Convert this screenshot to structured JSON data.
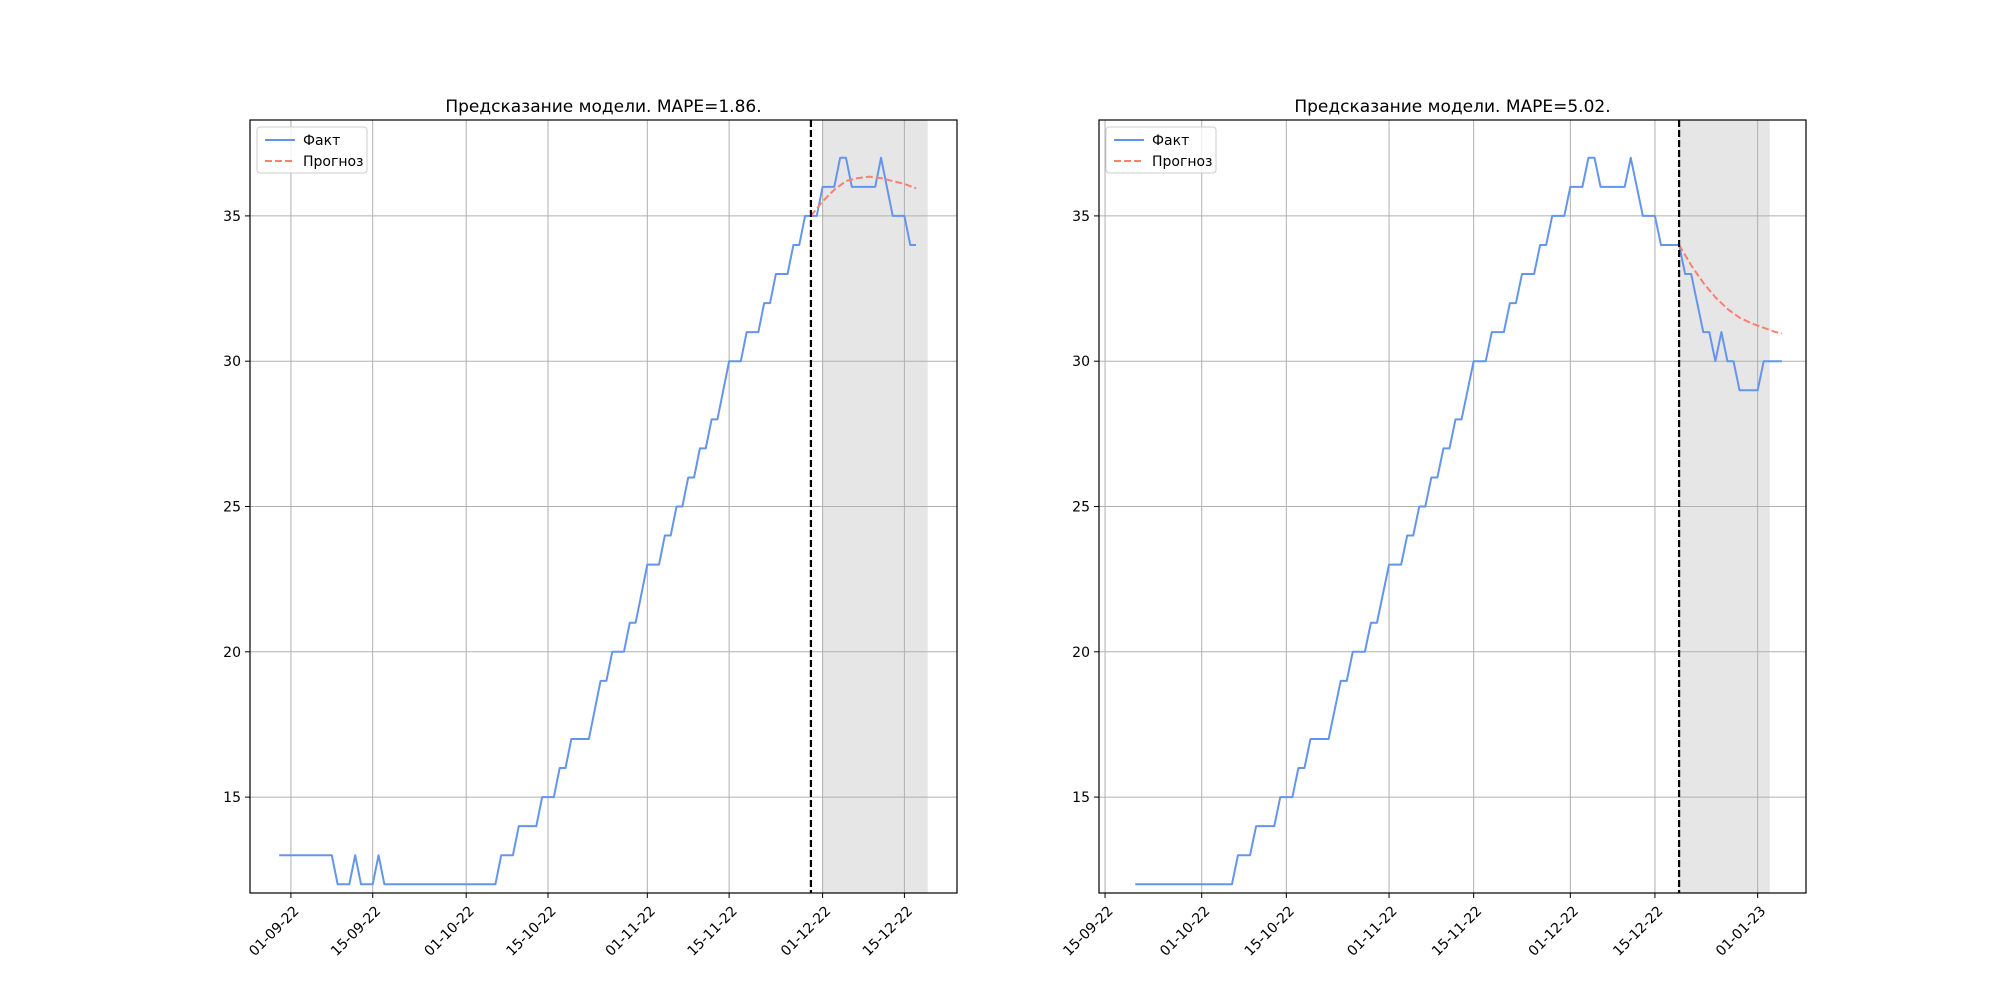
{
  "chart_data": [
    {
      "type": "line",
      "title": "Предсказание модели. MAPE=1.86.",
      "xlabel": "",
      "ylabel": "",
      "x_axis": "date",
      "xlim": [
        "2022-08-25",
        "2022-12-24"
      ],
      "ylim": [
        11.7,
        38.3
      ],
      "yticks": [
        15,
        20,
        25,
        30,
        35
      ],
      "xticks": [
        {
          "date": "2022-09-01",
          "label": "01-09-22"
        },
        {
          "date": "2022-09-15",
          "label": "15-09-22"
        },
        {
          "date": "2022-10-01",
          "label": "01-10-22"
        },
        {
          "date": "2022-10-15",
          "label": "15-10-22"
        },
        {
          "date": "2022-11-01",
          "label": "01-11-22"
        },
        {
          "date": "2022-11-15",
          "label": "15-11-22"
        },
        {
          "date": "2022-12-01",
          "label": "01-12-22"
        },
        {
          "date": "2022-12-15",
          "label": "15-12-22"
        }
      ],
      "grid": true,
      "legend": "top-left",
      "forecast_start": "2022-11-29",
      "shaded_range": [
        "2022-12-01",
        "2022-12-19"
      ],
      "series": [
        {
          "name": "Факт",
          "color": "#6495ED",
          "style": "solid",
          "points": [
            [
              "2022-08-30",
              13
            ],
            [
              "2022-09-08",
              13
            ],
            [
              "2022-09-09",
              12
            ],
            [
              "2022-09-11",
              12
            ],
            [
              "2022-09-12",
              13
            ],
            [
              "2022-09-13",
              12
            ],
            [
              "2022-09-15",
              12
            ],
            [
              "2022-09-16",
              13
            ],
            [
              "2022-09-17",
              12
            ],
            [
              "2022-10-06",
              12
            ],
            [
              "2022-10-07",
              13
            ],
            [
              "2022-10-09",
              13
            ],
            [
              "2022-10-10",
              14
            ],
            [
              "2022-10-13",
              14
            ],
            [
              "2022-10-14",
              15
            ],
            [
              "2022-10-16",
              15
            ],
            [
              "2022-10-17",
              16
            ],
            [
              "2022-10-18",
              16
            ],
            [
              "2022-10-19",
              17
            ],
            [
              "2022-10-22",
              17
            ],
            [
              "2022-10-24",
              19
            ],
            [
              "2022-10-25",
              19
            ],
            [
              "2022-10-26",
              20
            ],
            [
              "2022-10-28",
              20
            ],
            [
              "2022-10-29",
              21
            ],
            [
              "2022-10-30",
              21
            ],
            [
              "2022-11-01",
              23
            ],
            [
              "2022-11-03",
              23
            ],
            [
              "2022-11-04",
              24
            ],
            [
              "2022-11-05",
              24
            ],
            [
              "2022-11-06",
              25
            ],
            [
              "2022-11-07",
              25
            ],
            [
              "2022-11-08",
              26
            ],
            [
              "2022-11-09",
              26
            ],
            [
              "2022-11-10",
              27
            ],
            [
              "2022-11-11",
              27
            ],
            [
              "2022-11-12",
              28
            ],
            [
              "2022-11-13",
              28
            ],
            [
              "2022-11-15",
              30
            ],
            [
              "2022-11-17",
              30
            ],
            [
              "2022-11-18",
              31
            ],
            [
              "2022-11-20",
              31
            ],
            [
              "2022-11-21",
              32
            ],
            [
              "2022-11-22",
              32
            ],
            [
              "2022-11-23",
              33
            ],
            [
              "2022-11-25",
              33
            ],
            [
              "2022-11-26",
              34
            ],
            [
              "2022-11-27",
              34
            ],
            [
              "2022-11-28",
              35
            ],
            [
              "2022-11-30",
              35
            ],
            [
              "2022-12-01",
              36
            ],
            [
              "2022-12-03",
              36
            ],
            [
              "2022-12-04",
              37
            ],
            [
              "2022-12-05",
              37
            ],
            [
              "2022-12-06",
              36
            ],
            [
              "2022-12-10",
              36
            ],
            [
              "2022-12-11",
              37
            ],
            [
              "2022-12-13",
              35
            ],
            [
              "2022-12-15",
              35
            ],
            [
              "2022-12-16",
              34
            ],
            [
              "2022-12-17",
              34
            ]
          ]
        },
        {
          "name": "Прогноз",
          "color": "#FA8072",
          "style": "dashed",
          "points": [
            [
              "2022-11-29",
              35.0
            ],
            [
              "2022-12-01",
              35.5
            ],
            [
              "2022-12-03",
              35.9
            ],
            [
              "2022-12-05",
              36.2
            ],
            [
              "2022-12-07",
              36.3
            ],
            [
              "2022-12-09",
              36.35
            ],
            [
              "2022-12-11",
              36.3
            ],
            [
              "2022-12-13",
              36.2
            ],
            [
              "2022-12-15",
              36.1
            ],
            [
              "2022-12-17",
              35.95
            ]
          ]
        }
      ]
    },
    {
      "type": "line",
      "title": "Предсказание модели. MAPE=5.02.",
      "xlabel": "",
      "ylabel": "",
      "x_axis": "date",
      "xlim": [
        "2022-09-14",
        "2023-01-09"
      ],
      "ylim": [
        11.7,
        38.3
      ],
      "yticks": [
        15,
        20,
        25,
        30,
        35
      ],
      "xticks": [
        {
          "date": "2022-09-15",
          "label": "15-09-22"
        },
        {
          "date": "2022-10-01",
          "label": "01-10-22"
        },
        {
          "date": "2022-10-15",
          "label": "15-10-22"
        },
        {
          "date": "2022-11-01",
          "label": "01-11-22"
        },
        {
          "date": "2022-11-15",
          "label": "15-11-22"
        },
        {
          "date": "2022-12-01",
          "label": "01-12-22"
        },
        {
          "date": "2022-12-15",
          "label": "15-12-22"
        },
        {
          "date": "2023-01-01",
          "label": "01-01-23"
        }
      ],
      "grid": true,
      "legend": "top-left",
      "forecast_start": "2022-12-19",
      "shaded_range": [
        "2022-12-19",
        "2023-01-03"
      ],
      "series": [
        {
          "name": "Факт",
          "color": "#6495ED",
          "style": "solid",
          "points": [
            [
              "2022-09-20",
              12
            ],
            [
              "2022-10-06",
              12
            ],
            [
              "2022-10-07",
              13
            ],
            [
              "2022-10-09",
              13
            ],
            [
              "2022-10-10",
              14
            ],
            [
              "2022-10-13",
              14
            ],
            [
              "2022-10-14",
              15
            ],
            [
              "2022-10-16",
              15
            ],
            [
              "2022-10-17",
              16
            ],
            [
              "2022-10-18",
              16
            ],
            [
              "2022-10-19",
              17
            ],
            [
              "2022-10-22",
              17
            ],
            [
              "2022-10-24",
              19
            ],
            [
              "2022-10-25",
              19
            ],
            [
              "2022-10-26",
              20
            ],
            [
              "2022-10-28",
              20
            ],
            [
              "2022-10-29",
              21
            ],
            [
              "2022-10-30",
              21
            ],
            [
              "2022-11-01",
              23
            ],
            [
              "2022-11-03",
              23
            ],
            [
              "2022-11-04",
              24
            ],
            [
              "2022-11-05",
              24
            ],
            [
              "2022-11-06",
              25
            ],
            [
              "2022-11-07",
              25
            ],
            [
              "2022-11-08",
              26
            ],
            [
              "2022-11-09",
              26
            ],
            [
              "2022-11-10",
              27
            ],
            [
              "2022-11-11",
              27
            ],
            [
              "2022-11-12",
              28
            ],
            [
              "2022-11-13",
              28
            ],
            [
              "2022-11-15",
              30
            ],
            [
              "2022-11-17",
              30
            ],
            [
              "2022-11-18",
              31
            ],
            [
              "2022-11-20",
              31
            ],
            [
              "2022-11-21",
              32
            ],
            [
              "2022-11-22",
              32
            ],
            [
              "2022-11-23",
              33
            ],
            [
              "2022-11-25",
              33
            ],
            [
              "2022-11-26",
              34
            ],
            [
              "2022-11-27",
              34
            ],
            [
              "2022-11-28",
              35
            ],
            [
              "2022-11-30",
              35
            ],
            [
              "2022-12-01",
              36
            ],
            [
              "2022-12-03",
              36
            ],
            [
              "2022-12-04",
              37
            ],
            [
              "2022-12-05",
              37
            ],
            [
              "2022-12-06",
              36
            ],
            [
              "2022-12-10",
              36
            ],
            [
              "2022-12-11",
              37
            ],
            [
              "2022-12-13",
              35
            ],
            [
              "2022-12-15",
              35
            ],
            [
              "2022-12-16",
              34
            ],
            [
              "2022-12-18",
              34
            ],
            [
              "2022-12-19",
              34
            ],
            [
              "2022-12-20",
              33
            ],
            [
              "2022-12-21",
              33
            ],
            [
              "2022-12-23",
              31
            ],
            [
              "2022-12-24",
              31
            ],
            [
              "2022-12-25",
              30
            ],
            [
              "2022-12-26",
              31
            ],
            [
              "2022-12-27",
              30
            ],
            [
              "2022-12-28",
              30
            ],
            [
              "2022-12-29",
              29
            ],
            [
              "2023-01-01",
              29
            ],
            [
              "2023-01-02",
              30
            ],
            [
              "2023-01-05",
              30
            ]
          ]
        },
        {
          "name": "Прогноз",
          "color": "#FA8072",
          "style": "dashed",
          "points": [
            [
              "2022-12-19",
              34.0
            ],
            [
              "2022-12-21",
              33.3
            ],
            [
              "2022-12-23",
              32.7
            ],
            [
              "2022-12-25",
              32.2
            ],
            [
              "2022-12-27",
              31.8
            ],
            [
              "2022-12-29",
              31.5
            ],
            [
              "2022-12-31",
              31.3
            ],
            [
              "2023-01-02",
              31.15
            ],
            [
              "2023-01-04",
              31.0
            ],
            [
              "2023-01-05",
              30.95
            ]
          ]
        }
      ]
    }
  ]
}
